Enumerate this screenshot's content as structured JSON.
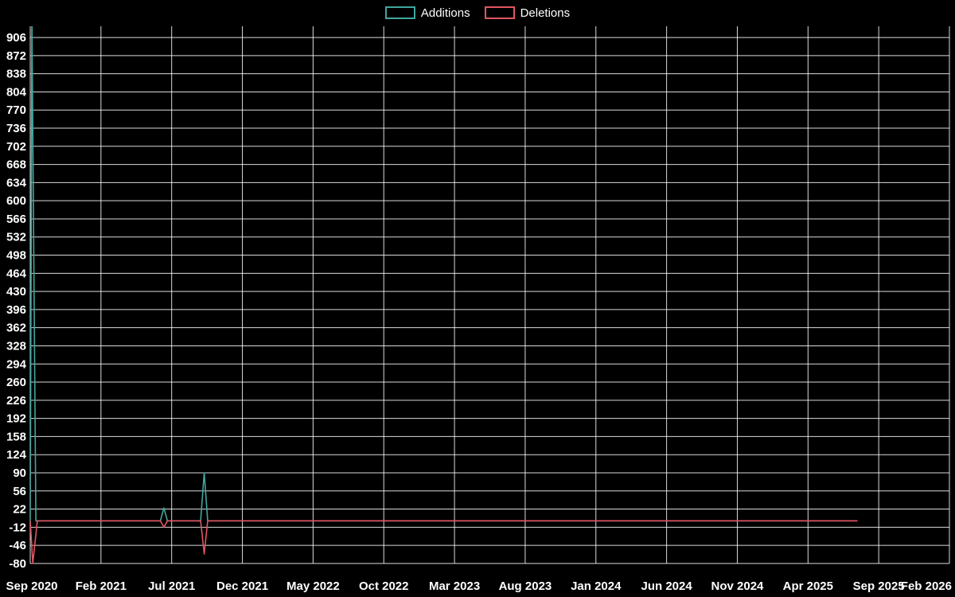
{
  "legend": {
    "items": [
      {
        "label": "Additions",
        "color": "#3fa79f"
      },
      {
        "label": "Deletions",
        "color": "#e25563"
      }
    ]
  },
  "chart_data": {
    "type": "line",
    "title": "",
    "xlabel": "",
    "ylabel": "",
    "background_color": "#000000",
    "grid": true,
    "grid_color": "rgba(255,255,255,0.85)",
    "text_color": "#ffffff",
    "legend_position": "top-center",
    "x_axis": {
      "unit": "months from Sep 2020",
      "range": [
        0,
        65
      ],
      "tick_interval_months": 5,
      "tick_labels": [
        "Sep 2020",
        "Feb 2021",
        "Jul 2021",
        "Dec 2021",
        "May 2022",
        "Oct 2022",
        "Mar 2023",
        "Aug 2023",
        "Jan 2024",
        "Jun 2024",
        "Nov 2024",
        "Apr 2025",
        "Sep 2025",
        "Feb 2026"
      ]
    },
    "y_axis": {
      "range_displayed": [
        -101,
        927
      ],
      "ticks": [
        -80,
        -46,
        -12,
        22,
        56,
        90,
        124,
        158,
        192,
        226,
        260,
        294,
        328,
        362,
        396,
        430,
        464,
        498,
        532,
        566,
        600,
        634,
        668,
        702,
        736,
        770,
        804,
        838,
        872,
        906
      ]
    },
    "series": [
      {
        "name": "Additions",
        "color": "#3fa79f",
        "points": [
          [
            0,
            0
          ],
          [
            0.12,
            940
          ],
          [
            0.4,
            0
          ],
          [
            9.2,
            0
          ],
          [
            9.45,
            24
          ],
          [
            9.7,
            0
          ],
          [
            12.05,
            0
          ],
          [
            12.3,
            90
          ],
          [
            12.55,
            0
          ],
          [
            58.5,
            0
          ]
        ]
      },
      {
        "name": "Deletions",
        "color": "#e25563",
        "points": [
          [
            0,
            0
          ],
          [
            0.18,
            -80
          ],
          [
            0.5,
            0
          ],
          [
            9.2,
            0
          ],
          [
            9.45,
            -12
          ],
          [
            9.7,
            0
          ],
          [
            12.05,
            0
          ],
          [
            12.3,
            -62
          ],
          [
            12.55,
            0
          ],
          [
            58.5,
            0
          ]
        ]
      }
    ]
  }
}
